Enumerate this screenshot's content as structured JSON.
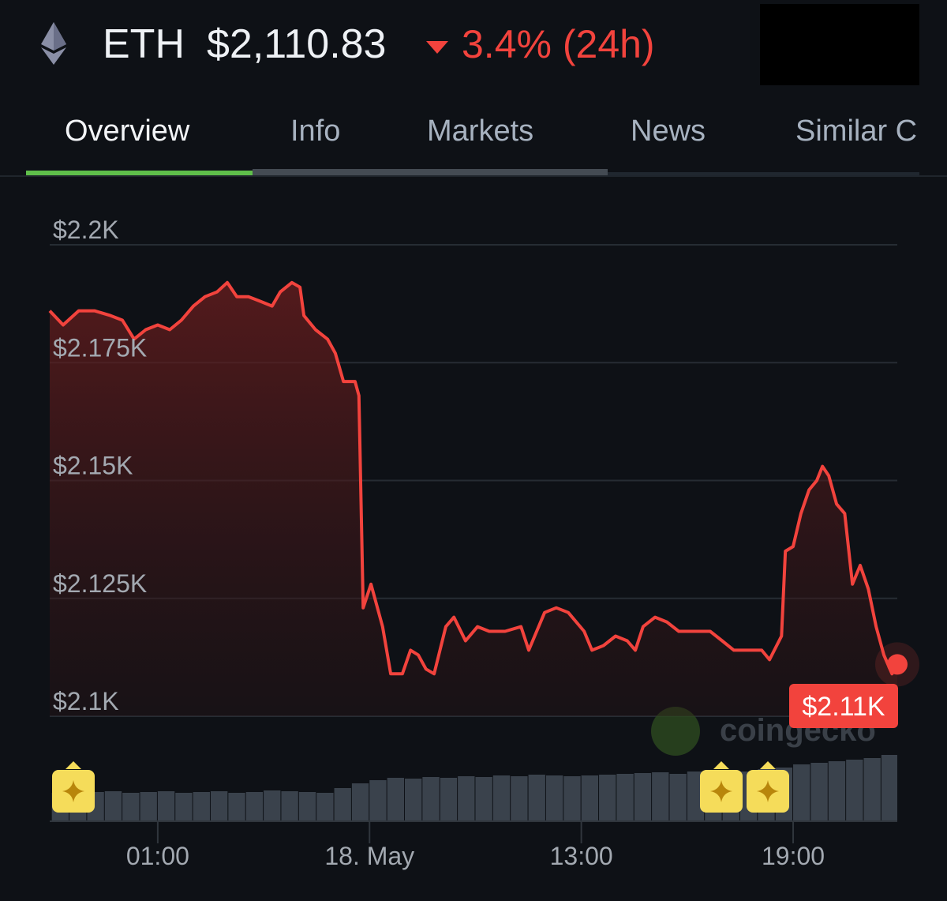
{
  "header": {
    "coin": "ETH",
    "price": "$2,110.83",
    "change": "3.4% (24h)"
  },
  "tabs": [
    "Overview",
    "Info",
    "Markets",
    "News",
    "Similar C"
  ],
  "chart_data": {
    "type": "line",
    "color": "#f2433d",
    "watermark": "coingecko",
    "x": [
      -2.06,
      -1.68,
      -1.24,
      -0.79,
      -0.34,
      0.0,
      0.33,
      0.66,
      1.0,
      1.34,
      1.67,
      2.01,
      2.34,
      2.68,
      2.97,
      3.24,
      3.57,
      3.91,
      4.24,
      4.47,
      4.8,
      5.03,
      5.14,
      5.47,
      5.81,
      6.03,
      6.26,
      6.59,
      6.7,
      6.82,
      7.04,
      7.37,
      7.6,
      7.93,
      8.16,
      8.38,
      8.6,
      8.83,
      9.16,
      9.39,
      9.72,
      10.06,
      10.39,
      10.84,
      11.29,
      11.51,
      11.96,
      12.29,
      12.63,
      13.08,
      13.3,
      13.63,
      13.97,
      14.3,
      14.53,
      14.75,
      15.09,
      15.42,
      15.76,
      16.21,
      16.65,
      16.99,
      17.32,
      17.77,
      18.11,
      18.33,
      18.67,
      18.78,
      19.0,
      19.22,
      19.45,
      19.67,
      19.83,
      20.01,
      20.23,
      20.46,
      20.68,
      20.9,
      21.13,
      21.35,
      21.57,
      21.8,
      21.95
    ],
    "values": [
      2186,
      2183,
      2186,
      2186,
      2185,
      2184,
      2180,
      2182,
      2183,
      2182,
      2184,
      2187,
      2189,
      2190,
      2192,
      2189,
      2189,
      2188,
      2187,
      2190,
      2192,
      2191,
      2185,
      2182,
      2180,
      2177,
      2171,
      2171,
      2168,
      2123,
      2128,
      2119,
      2109,
      2109,
      2114,
      2113,
      2110,
      2109,
      2119,
      2121,
      2116,
      2119,
      2118,
      2118,
      2119,
      2114,
      2122,
      2123,
      2122,
      2118,
      2114,
      2115,
      2117,
      2116,
      2114,
      2119,
      2121,
      2120,
      2118,
      2118,
      2118,
      2116,
      2114,
      2114,
      2114,
      2112,
      2117,
      2135,
      2136,
      2143,
      2148,
      2150,
      2153,
      2151,
      2145,
      2143,
      2128,
      2132,
      2127,
      2119,
      2113,
      2109,
      2111
    ],
    "last_label": "$2.11K",
    "xlim": [
      -2.06,
      21.95
    ],
    "ylim": [
      2100,
      2200
    ],
    "yticks": [
      {
        "value": 2100,
        "label": "$2.1K"
      },
      {
        "value": 2125,
        "label": "$2.125K"
      },
      {
        "value": 2150,
        "label": "$2.15K"
      },
      {
        "value": 2175,
        "label": "$2.175K"
      },
      {
        "value": 2200,
        "label": "$2.2K"
      }
    ],
    "xticks": [
      {
        "value": 1,
        "label": "01:00"
      },
      {
        "value": 7,
        "label": "18. May"
      },
      {
        "value": 13,
        "label": "13:00"
      },
      {
        "value": 19,
        "label": "19:00"
      }
    ],
    "grid": true,
    "volume": {
      "color": "#3a424c",
      "y2lim": [
        0,
        100
      ],
      "x": [
        -2.0,
        -1.5,
        -1.0,
        -0.5,
        0.0,
        0.5,
        1.0,
        1.5,
        2.0,
        2.5,
        3.0,
        3.5,
        4.0,
        4.5,
        5.0,
        5.5,
        6.0,
        6.5,
        7.0,
        7.5,
        8.0,
        8.5,
        9.0,
        9.5,
        10.0,
        10.5,
        11.0,
        11.5,
        12.0,
        12.5,
        13.0,
        13.5,
        14.0,
        14.5,
        15.0,
        15.5,
        16.0,
        16.5,
        17.0,
        17.5,
        18.0,
        18.5,
        19.0,
        19.5,
        20.0,
        20.5,
        21.0,
        21.5
      ],
      "values": [
        36,
        35,
        37,
        38,
        36,
        37,
        38,
        36,
        37,
        38,
        36,
        37,
        39,
        38,
        37,
        36,
        42,
        48,
        52,
        55,
        54,
        56,
        55,
        57,
        56,
        58,
        57,
        59,
        58,
        57,
        58,
        59,
        60,
        61,
        62,
        60,
        63,
        62,
        64,
        63,
        66,
        68,
        72,
        74,
        76,
        78,
        80,
        84
      ]
    }
  }
}
